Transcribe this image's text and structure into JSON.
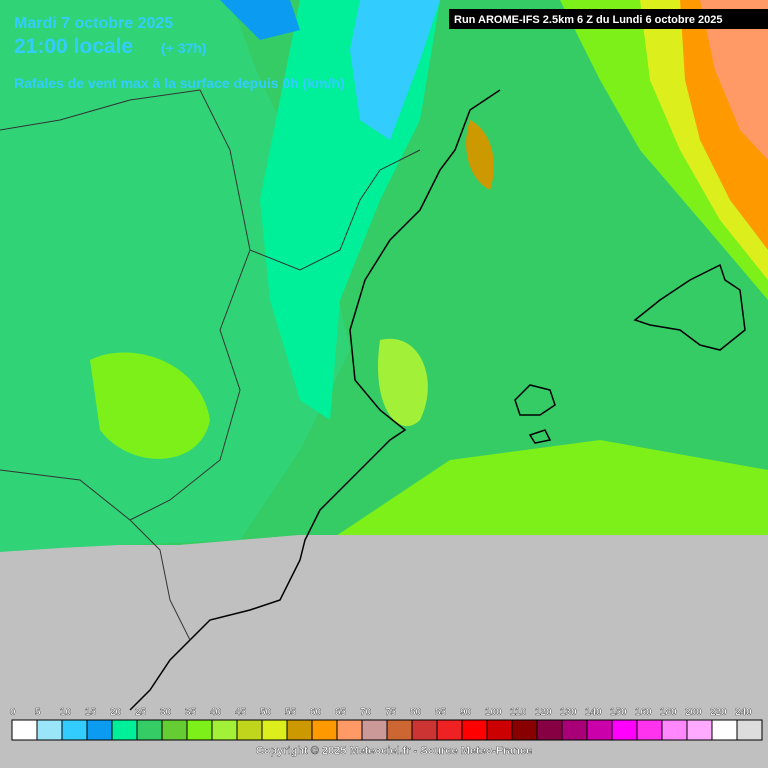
{
  "header": {
    "date": "Mardi 7 octobre 2025",
    "time": "21:00 locale",
    "lead": "(+ 37h)",
    "parameter": "Rafales de vent max à la surface depuis 0h (km/h)",
    "run": "Run AROME-IFS 2.5km 6 Z du Lundi 6 octobre 2025"
  },
  "legend": {
    "ticks": [
      0,
      5,
      10,
      15,
      20,
      25,
      30,
      35,
      40,
      45,
      50,
      55,
      60,
      65,
      70,
      75,
      80,
      85,
      90,
      100,
      110,
      120,
      130,
      140,
      150,
      160,
      180,
      200,
      220,
      240
    ],
    "colors": [
      "#ffffff",
      "#9ae6f8",
      "#33ccff",
      "#0b9bf0",
      "#00f09a",
      "#35cc66",
      "#66cc33",
      "#7df01a",
      "#a3f038",
      "#bfd61d",
      "#dcee1b",
      "#cc9900",
      "#ff9900",
      "#ff9966",
      "#cc9999",
      "#cc6633",
      "#cc3333",
      "#ee2222",
      "#ff0000",
      "#cc0000",
      "#880000",
      "#880044",
      "#aa0077",
      "#cc00aa",
      "#ff00ff",
      "#ff33ee",
      "#ff88ff",
      "#ffaaff",
      "#ffffff",
      "#dddddd"
    ]
  },
  "footer": {
    "copyright": "Copyright © 2025 Meteociel.fr - Source Meteo-France"
  }
}
